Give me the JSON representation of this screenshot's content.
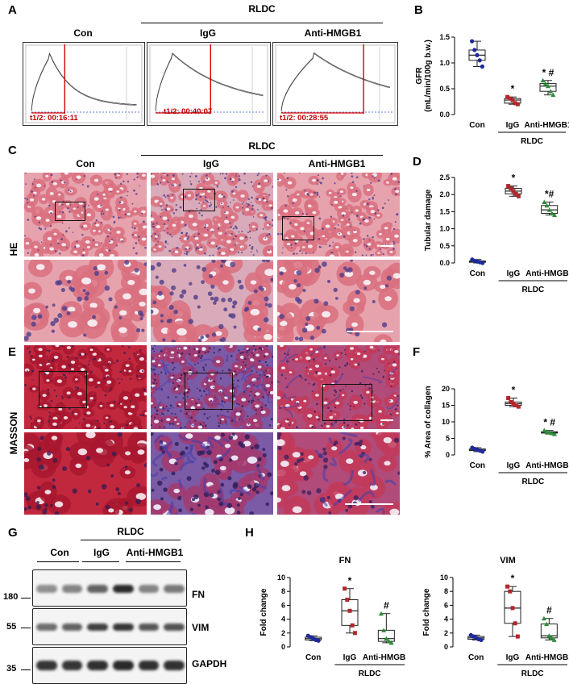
{
  "panels": {
    "A": "A",
    "B": "B",
    "C": "C",
    "D": "D",
    "E": "E",
    "F": "F",
    "G": "G",
    "H": "H"
  },
  "groups": {
    "rldc": "RLDC",
    "con": "Con",
    "igg": "IgG",
    "anti": "Anti-HMGB1"
  },
  "gfr_curves": [
    {
      "group": "Con",
      "t_half": "t1/2: 00:16:11"
    },
    {
      "group": "IgG",
      "t_half": "t1/2: 00:40:07"
    },
    {
      "group": "Anti-HMGB1",
      "t_half": "t1/2: 00:28:55"
    }
  ],
  "stains": {
    "he": "HE",
    "masson": "MASSON"
  },
  "western": {
    "mw": [
      "180",
      "55",
      "35"
    ],
    "proteins": [
      "FN",
      "VIM",
      "GAPDH"
    ]
  },
  "colors": {
    "con": "#1f2a9a",
    "igg": "#b3262b",
    "anti": "#2e8b3a",
    "curve_marker": "#d40000"
  },
  "chart_data": [
    {
      "type": "box",
      "panel": "B",
      "ylabel": "GFR\n(mL/min/100g b.w.)",
      "ylim": [
        0,
        1.5
      ],
      "yticks": [
        "0.0",
        "0.5",
        "1.0",
        "1.5"
      ],
      "categories": [
        "Con",
        "IgG",
        "Anti-HMGB1"
      ],
      "group_label": "RLDC",
      "series": [
        {
          "values": [
            1.42,
            1.25,
            1.15,
            1.05,
            0.93
          ]
        },
        {
          "values": [
            0.34,
            0.31,
            0.28,
            0.22,
            0.2
          ]
        },
        {
          "values": [
            0.66,
            0.6,
            0.55,
            0.45,
            0.38
          ]
        }
      ],
      "annotations": [
        "",
        "*",
        "* #"
      ]
    },
    {
      "type": "box",
      "panel": "D",
      "ylabel": "Tubular damage",
      "ylim": [
        0,
        2.5
      ],
      "yticks": [
        "0.0",
        "0.5",
        "1.0",
        "1.5",
        "2.0",
        "2.5"
      ],
      "categories": [
        "Con",
        "IgG",
        "Anti-HMGB1"
      ],
      "group_label": "RLDC",
      "series": [
        {
          "values": [
            0.1,
            0.06,
            0.04,
            0.02,
            0.0
          ]
        },
        {
          "values": [
            2.25,
            2.18,
            2.1,
            2.02,
            1.95
          ]
        },
        {
          "values": [
            1.78,
            1.68,
            1.55,
            1.45,
            1.4
          ]
        }
      ],
      "annotations": [
        "",
        "*",
        "*#"
      ]
    },
    {
      "type": "box",
      "panel": "F",
      "ylabel": "% Area of collagen",
      "ylim": [
        0,
        20
      ],
      "yticks": [
        "0",
        "5",
        "10",
        "15",
        "20"
      ],
      "categories": [
        "Con",
        "IgG",
        "Anti-HMGB1"
      ],
      "group_label": "RLDC",
      "series": [
        {
          "values": [
            2.2,
            1.8,
            1.5,
            1.3,
            1.0
          ]
        },
        {
          "values": [
            17.2,
            16.0,
            15.5,
            15.0,
            14.6
          ]
        },
        {
          "values": [
            7.4,
            7.0,
            6.8,
            6.6,
            6.3
          ]
        }
      ],
      "annotations": [
        "",
        "*",
        "* #"
      ]
    },
    {
      "type": "box",
      "panel": "H",
      "title": "FN",
      "ylabel": "Fold change",
      "ylim": [
        0,
        10
      ],
      "yticks": [
        "0",
        "2",
        "4",
        "6",
        "8",
        "10"
      ],
      "categories": [
        "Con",
        "IgG",
        "Anti-HMGB1"
      ],
      "group_label": "RLDC",
      "series": [
        {
          "values": [
            1.6,
            1.4,
            1.2,
            1.0,
            0.9
          ]
        },
        {
          "values": [
            8.4,
            6.8,
            5.2,
            3.1,
            2.0
          ]
        },
        {
          "values": [
            4.8,
            2.4,
            1.2,
            0.8,
            0.6
          ]
        }
      ],
      "annotations": [
        "",
        "*",
        "#"
      ]
    },
    {
      "type": "box",
      "panel": "H",
      "title": "VIM",
      "ylabel": "Fold change",
      "ylim": [
        0,
        10
      ],
      "yticks": [
        "0",
        "2",
        "4",
        "6",
        "8",
        "10"
      ],
      "categories": [
        "Con",
        "IgG",
        "Anti-HMGB1"
      ],
      "group_label": "RLDC",
      "series": [
        {
          "values": [
            1.7,
            1.5,
            1.3,
            1.1,
            1.0
          ]
        },
        {
          "values": [
            8.7,
            8.0,
            5.6,
            3.4,
            1.5
          ]
        },
        {
          "values": [
            4.1,
            3.3,
            1.6,
            1.3,
            1.0
          ]
        }
      ],
      "annotations": [
        "",
        "*",
        "#"
      ]
    }
  ]
}
